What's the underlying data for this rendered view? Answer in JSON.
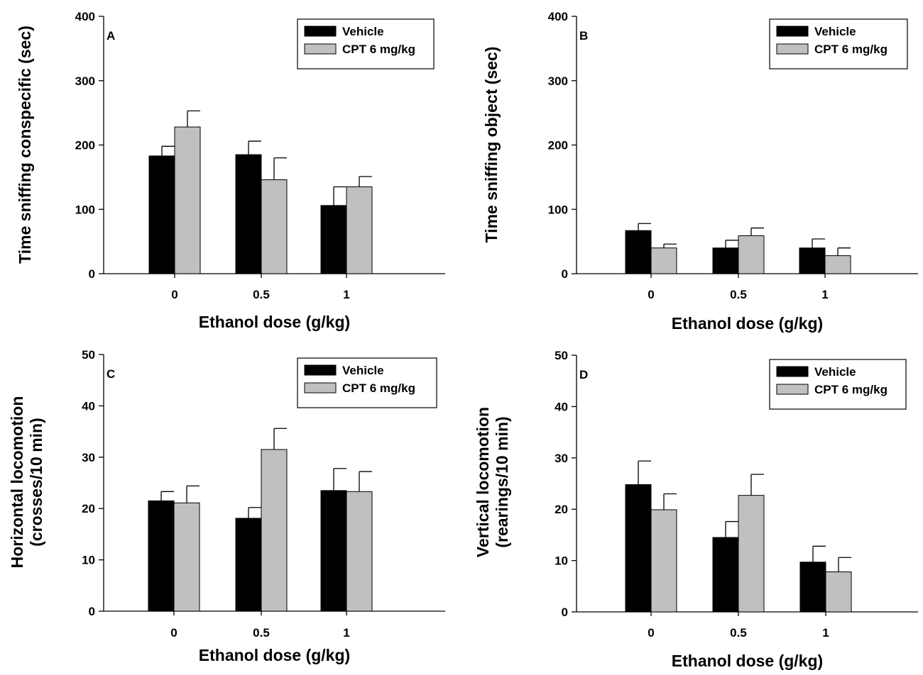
{
  "colors": {
    "vehicle": "#000000",
    "cpt": "#c0c0c0",
    "axis": "#000000",
    "background": "#ffffff"
  },
  "chart_data": [
    {
      "type": "bar",
      "panel": "A",
      "categories": [
        "0",
        "0.5",
        "1"
      ],
      "series": [
        {
          "name": "Vehicle",
          "values": [
            183,
            185,
            106
          ],
          "errors": [
            15,
            21,
            29
          ]
        },
        {
          "name": "CPT 6 mg/kg",
          "values": [
            228,
            146,
            135
          ],
          "errors": [
            25,
            34,
            16
          ]
        }
      ],
      "xlabel": "Ethanol dose (g/kg)",
      "ylabel": "Time sniffing conspecific (sec)",
      "ylim": [
        0,
        400
      ],
      "yticks": [
        0,
        100,
        200,
        300,
        400
      ],
      "legend": "top-right",
      "grid": false
    },
    {
      "type": "bar",
      "panel": "B",
      "categories": [
        "0",
        "0.5",
        "1"
      ],
      "series": [
        {
          "name": "Vehicle",
          "values": [
            67,
            40,
            40
          ],
          "errors": [
            11,
            12,
            14
          ]
        },
        {
          "name": "CPT 6 mg/kg",
          "values": [
            40,
            59,
            28
          ],
          "errors": [
            6,
            12,
            12
          ]
        }
      ],
      "xlabel": "Ethanol dose (g/kg)",
      "ylabel": "Time sniffing object (sec)",
      "ylim": [
        0,
        400
      ],
      "yticks": [
        0,
        100,
        200,
        300,
        400
      ],
      "legend": "top-right",
      "grid": false
    },
    {
      "type": "bar",
      "panel": "C",
      "categories": [
        "0",
        "0.5",
        "1"
      ],
      "series": [
        {
          "name": "Vehicle",
          "values": [
            21.5,
            18.1,
            23.5
          ],
          "errors": [
            1.8,
            2.1,
            4.3
          ]
        },
        {
          "name": "CPT 6 mg/kg",
          "values": [
            21.1,
            31.5,
            23.3
          ],
          "errors": [
            3.3,
            4.1,
            3.9
          ]
        }
      ],
      "xlabel": "Ethanol dose (g/kg)",
      "ylabel": [
        "Horizontal locomotion",
        "(crosses/10 min)"
      ],
      "ylim": [
        0,
        50
      ],
      "yticks": [
        0,
        10,
        20,
        30,
        40,
        50
      ],
      "legend": "top-right",
      "grid": false
    },
    {
      "type": "bar",
      "panel": "D",
      "categories": [
        "0",
        "0.5",
        "1"
      ],
      "series": [
        {
          "name": "Vehicle",
          "values": [
            24.8,
            14.5,
            9.7
          ],
          "errors": [
            4.6,
            3.1,
            3.1
          ]
        },
        {
          "name": "CPT 6 mg/kg",
          "values": [
            19.9,
            22.7,
            7.8
          ],
          "errors": [
            3.1,
            4.1,
            2.8
          ]
        }
      ],
      "xlabel": "Ethanol dose (g/kg)",
      "ylabel": [
        "Vertical locomotion",
        "(rearings/10 min)"
      ],
      "ylim": [
        0,
        50
      ],
      "yticks": [
        0,
        10,
        20,
        30,
        40,
        50
      ],
      "legend": "top-right",
      "grid": false
    }
  ]
}
